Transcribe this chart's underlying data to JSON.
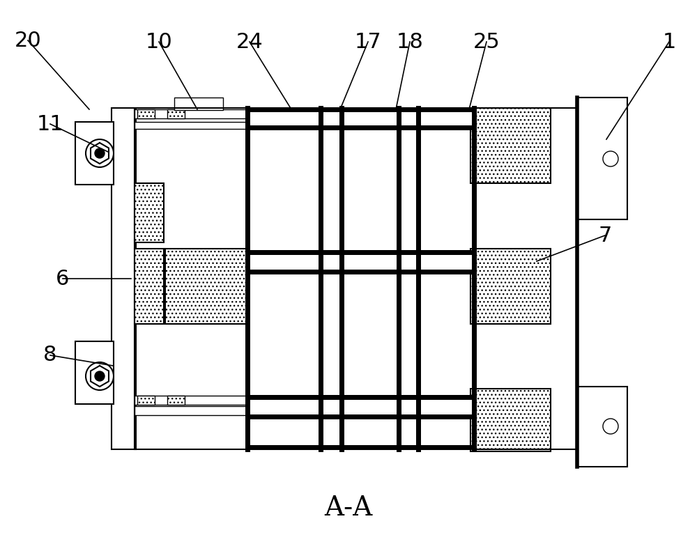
{
  "bg_color": "#ffffff",
  "line_color": "#000000",
  "thick_line": 5.0,
  "med_line": 1.5,
  "thin_line": 1.0,
  "label_fontsize": 22,
  "title_fontsize": 28,
  "title": "A-A",
  "labels_info": [
    [
      "1",
      870,
      200,
      960,
      60
    ],
    [
      "6",
      188,
      400,
      90,
      400
    ],
    [
      "7",
      770,
      375,
      868,
      338
    ],
    [
      "8",
      162,
      525,
      72,
      510
    ],
    [
      "10",
      283,
      157,
      228,
      60
    ],
    [
      "11",
      155,
      218,
      72,
      178
    ],
    [
      "17",
      488,
      157,
      528,
      60
    ],
    [
      "18",
      568,
      157,
      588,
      60
    ],
    [
      "20",
      128,
      157,
      40,
      58
    ],
    [
      "24",
      418,
      157,
      358,
      60
    ],
    [
      "25",
      673,
      157,
      698,
      60
    ]
  ]
}
